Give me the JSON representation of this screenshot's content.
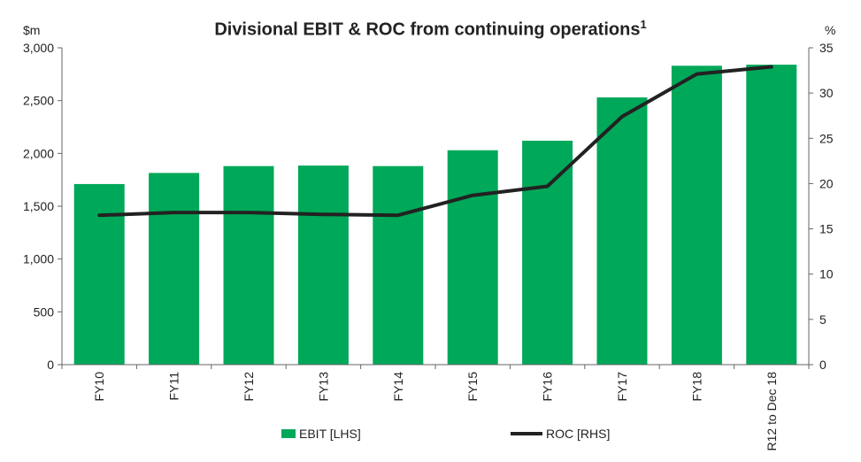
{
  "chart_data": {
    "type": "bar",
    "title": "Divisional EBIT & ROC from continuing operations",
    "title_sup": "1",
    "categories": [
      "FY10",
      "FY11",
      "FY12",
      "FY13",
      "FY14",
      "FY15",
      "FY16",
      "FY17",
      "FY18",
      "R12 to Dec 18"
    ],
    "series": [
      {
        "name": "EBIT [LHS]",
        "type": "bar",
        "axis": "left",
        "values": [
          1710,
          1815,
          1880,
          1885,
          1880,
          2030,
          2120,
          2530,
          2830,
          2840
        ]
      },
      {
        "name": "ROC [RHS]",
        "type": "line",
        "axis": "right",
        "values": [
          16.5,
          16.8,
          16.8,
          16.6,
          16.5,
          18.7,
          19.7,
          27.4,
          32.1,
          32.9
        ]
      }
    ],
    "left_axis": {
      "label": "$m",
      "ylim": [
        0,
        3000
      ],
      "ticks": [
        "0",
        "500",
        "1,000",
        "1,500",
        "2,000",
        "2,500",
        "3,000"
      ],
      "tick_values": [
        0,
        500,
        1000,
        1500,
        2000,
        2500,
        3000
      ]
    },
    "right_axis": {
      "label": "%",
      "ylim": [
        0,
        35
      ],
      "ticks": [
        "0",
        "5",
        "10",
        "15",
        "20",
        "25",
        "30",
        "35"
      ],
      "tick_values": [
        0,
        5,
        10,
        15,
        20,
        25,
        30,
        35
      ]
    },
    "grid": false,
    "legend_position": "bottom",
    "colors": {
      "bar": "#00a859",
      "line": "#222222",
      "axis": "#666666"
    }
  }
}
